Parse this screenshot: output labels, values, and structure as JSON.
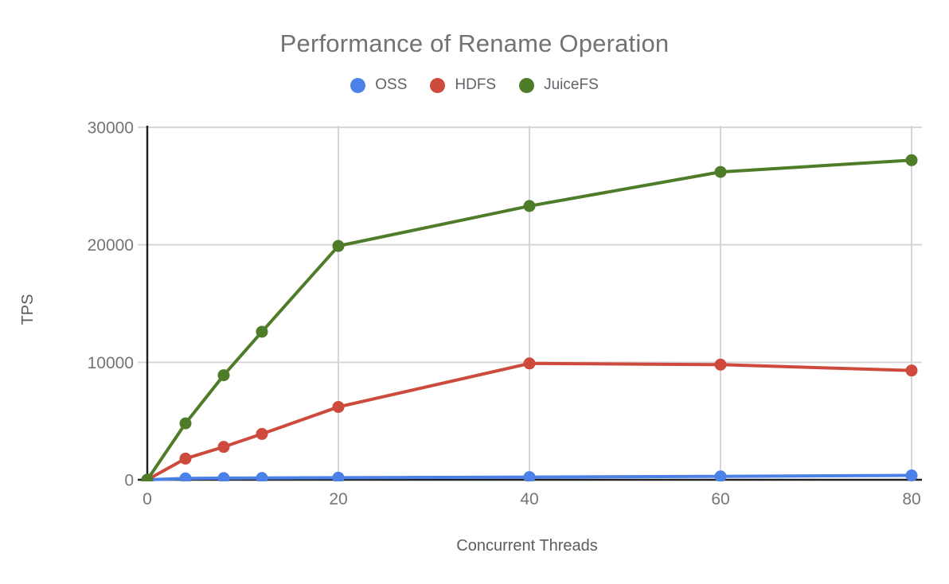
{
  "chart_data": {
    "type": "line",
    "title": "Performance of Rename Operation",
    "xlabel": "Concurrent Threads",
    "ylabel": "TPS",
    "x": [
      0,
      4,
      8,
      12,
      20,
      40,
      60,
      80
    ],
    "xlim": [
      0,
      80
    ],
    "ylim": [
      0,
      30000
    ],
    "x_ticks": [
      0,
      20,
      40,
      60,
      80
    ],
    "y_ticks": [
      0,
      10000,
      20000,
      30000
    ],
    "grid": true,
    "legend_position": "top",
    "series": [
      {
        "name": "OSS",
        "color": "#4c81e8",
        "values": [
          0,
          120,
          140,
          150,
          180,
          230,
          290,
          370
        ]
      },
      {
        "name": "HDFS",
        "color": "#cd4a3d",
        "values": [
          0,
          1800,
          2800,
          3900,
          6200,
          9900,
          9800,
          9300
        ]
      },
      {
        "name": "JuiceFS",
        "color": "#4e7c28",
        "values": [
          0,
          4800,
          8900,
          12600,
          19900,
          23300,
          26200,
          27200
        ]
      }
    ]
  },
  "styles": {
    "background": "#ffffff",
    "title_color": "#727272",
    "tick_color": "#757575",
    "axis_title_color": "#5c5c5c",
    "legend_text_color": "#5f6368",
    "grid_color": "#d6d6d6",
    "axis_color": "#212121"
  }
}
